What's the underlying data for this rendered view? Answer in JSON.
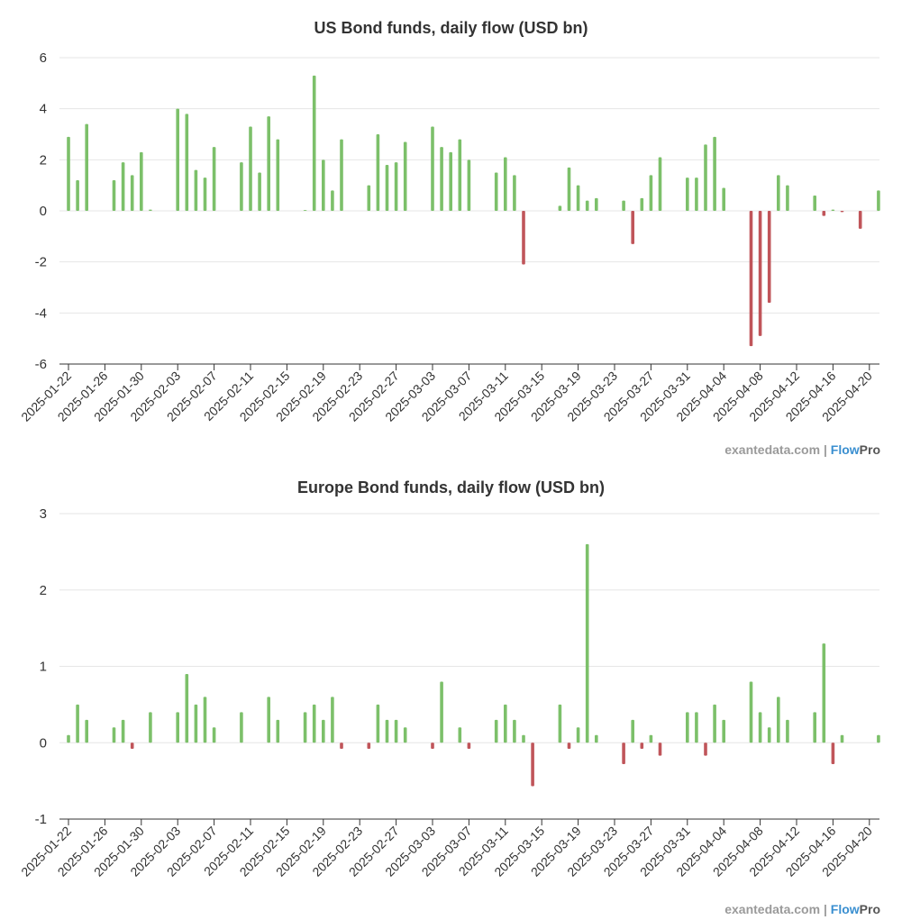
{
  "colors": {
    "positive": "#7cc06a",
    "negative": "#c0555a",
    "grid": "#e6e6e6",
    "brand_blue": "#3a8fd0"
  },
  "watermark": {
    "site": "exantedata.com",
    "separator": "|",
    "brand_a": "Flow",
    "brand_b": "Pro"
  },
  "chart_data": [
    {
      "type": "bar",
      "title": "US Bond funds, daily flow (USD bn)",
      "xlabel": "",
      "ylabel": "",
      "ylim": [
        -6,
        6
      ],
      "yticks": [
        6,
        4,
        2,
        0,
        -2,
        -4,
        -6
      ],
      "start_date": "2025-01-22",
      "num_days": 90,
      "xtick_labels": [
        "2025-01-22",
        "2025-01-26",
        "2025-01-30",
        "2025-02-03",
        "2025-02-07",
        "2025-02-11",
        "2025-02-15",
        "2025-02-19",
        "2025-02-23",
        "2025-02-27",
        "2025-03-03",
        "2025-03-07",
        "2025-03-11",
        "2025-03-15",
        "2025-03-19",
        "2025-03-23",
        "2025-03-27",
        "2025-03-31",
        "2025-04-04",
        "2025-04-08",
        "2025-04-12",
        "2025-04-16",
        "2025-04-20"
      ],
      "points": [
        {
          "date": "2025-01-22",
          "value": 2.9
        },
        {
          "date": "2025-01-23",
          "value": 1.2
        },
        {
          "date": "2025-01-24",
          "value": 3.4
        },
        {
          "date": "2025-01-27",
          "value": 1.2
        },
        {
          "date": "2025-01-28",
          "value": 1.9
        },
        {
          "date": "2025-01-29",
          "value": 1.4
        },
        {
          "date": "2025-01-30",
          "value": 2.3
        },
        {
          "date": "2025-01-31",
          "value": 0.05
        },
        {
          "date": "2025-02-03",
          "value": 4.0
        },
        {
          "date": "2025-02-04",
          "value": 3.8
        },
        {
          "date": "2025-02-05",
          "value": 1.6
        },
        {
          "date": "2025-02-06",
          "value": 1.3
        },
        {
          "date": "2025-02-07",
          "value": 2.5
        },
        {
          "date": "2025-02-10",
          "value": 1.9
        },
        {
          "date": "2025-02-11",
          "value": 3.3
        },
        {
          "date": "2025-02-12",
          "value": 1.5
        },
        {
          "date": "2025-02-13",
          "value": 3.7
        },
        {
          "date": "2025-02-14",
          "value": 2.8
        },
        {
          "date": "2025-02-17",
          "value": 0.03
        },
        {
          "date": "2025-02-18",
          "value": 5.3
        },
        {
          "date": "2025-02-19",
          "value": 2.0
        },
        {
          "date": "2025-02-20",
          "value": 0.8
        },
        {
          "date": "2025-02-21",
          "value": 2.8
        },
        {
          "date": "2025-02-24",
          "value": 1.0
        },
        {
          "date": "2025-02-25",
          "value": 3.0
        },
        {
          "date": "2025-02-26",
          "value": 1.8
        },
        {
          "date": "2025-02-27",
          "value": 1.9
        },
        {
          "date": "2025-02-28",
          "value": 2.7
        },
        {
          "date": "2025-03-03",
          "value": 3.3
        },
        {
          "date": "2025-03-04",
          "value": 2.5
        },
        {
          "date": "2025-03-05",
          "value": 2.3
        },
        {
          "date": "2025-03-06",
          "value": 2.8
        },
        {
          "date": "2025-03-07",
          "value": 2.0
        },
        {
          "date": "2025-03-10",
          "value": 1.5
        },
        {
          "date": "2025-03-11",
          "value": 2.1
        },
        {
          "date": "2025-03-12",
          "value": 1.4
        },
        {
          "date": "2025-03-13",
          "value": -2.1
        },
        {
          "date": "2025-03-17",
          "value": 0.2
        },
        {
          "date": "2025-03-18",
          "value": 1.7
        },
        {
          "date": "2025-03-19",
          "value": 1.0
        },
        {
          "date": "2025-03-20",
          "value": 0.4
        },
        {
          "date": "2025-03-21",
          "value": 0.5
        },
        {
          "date": "2025-03-24",
          "value": 0.4
        },
        {
          "date": "2025-03-25",
          "value": -1.3
        },
        {
          "date": "2025-03-26",
          "value": 0.5
        },
        {
          "date": "2025-03-27",
          "value": 1.4
        },
        {
          "date": "2025-03-28",
          "value": 2.1
        },
        {
          "date": "2025-03-31",
          "value": 1.3
        },
        {
          "date": "2025-04-01",
          "value": 1.3
        },
        {
          "date": "2025-04-02",
          "value": 2.6
        },
        {
          "date": "2025-04-03",
          "value": 2.9
        },
        {
          "date": "2025-04-04",
          "value": 0.9
        },
        {
          "date": "2025-04-07",
          "value": -5.3
        },
        {
          "date": "2025-04-08",
          "value": -4.9
        },
        {
          "date": "2025-04-09",
          "value": -3.6
        },
        {
          "date": "2025-04-10",
          "value": 1.4
        },
        {
          "date": "2025-04-11",
          "value": 1.0
        },
        {
          "date": "2025-04-14",
          "value": 0.6
        },
        {
          "date": "2025-04-15",
          "value": -0.2
        },
        {
          "date": "2025-04-16",
          "value": 0.05
        },
        {
          "date": "2025-04-17",
          "value": -0.05
        },
        {
          "date": "2025-04-19",
          "value": -0.7
        },
        {
          "date": "2025-04-21",
          "value": 0.8
        }
      ]
    },
    {
      "type": "bar",
      "title": "Europe Bond funds, daily flow (USD bn)",
      "xlabel": "",
      "ylabel": "",
      "ylim": [
        -1,
        3
      ],
      "yticks": [
        3,
        2,
        1,
        0,
        -1
      ],
      "start_date": "2025-01-22",
      "num_days": 90,
      "xtick_labels": [
        "2025-01-22",
        "2025-01-26",
        "2025-01-30",
        "2025-02-03",
        "2025-02-07",
        "2025-02-11",
        "2025-02-15",
        "2025-02-19",
        "2025-02-23",
        "2025-02-27",
        "2025-03-03",
        "2025-03-07",
        "2025-03-11",
        "2025-03-15",
        "2025-03-19",
        "2025-03-23",
        "2025-03-27",
        "2025-03-31",
        "2025-04-04",
        "2025-04-08",
        "2025-04-12",
        "2025-04-16",
        "2025-04-20"
      ],
      "points": [
        {
          "date": "2025-01-22",
          "value": 0.1
        },
        {
          "date": "2025-01-23",
          "value": 0.5
        },
        {
          "date": "2025-01-24",
          "value": 0.3
        },
        {
          "date": "2025-01-27",
          "value": 0.2
        },
        {
          "date": "2025-01-28",
          "value": 0.3
        },
        {
          "date": "2025-01-29",
          "value": -0.08
        },
        {
          "date": "2025-01-31",
          "value": 0.4
        },
        {
          "date": "2025-02-03",
          "value": 0.4
        },
        {
          "date": "2025-02-04",
          "value": 0.9
        },
        {
          "date": "2025-02-05",
          "value": 0.5
        },
        {
          "date": "2025-02-06",
          "value": 0.6
        },
        {
          "date": "2025-02-07",
          "value": 0.2
        },
        {
          "date": "2025-02-10",
          "value": 0.4
        },
        {
          "date": "2025-02-13",
          "value": 0.6
        },
        {
          "date": "2025-02-14",
          "value": 0.3
        },
        {
          "date": "2025-02-17",
          "value": 0.4
        },
        {
          "date": "2025-02-18",
          "value": 0.5
        },
        {
          "date": "2025-02-19",
          "value": 0.3
        },
        {
          "date": "2025-02-20",
          "value": 0.6
        },
        {
          "date": "2025-02-21",
          "value": -0.08
        },
        {
          "date": "2025-02-24",
          "value": -0.08
        },
        {
          "date": "2025-02-25",
          "value": 0.5
        },
        {
          "date": "2025-02-26",
          "value": 0.3
        },
        {
          "date": "2025-02-27",
          "value": 0.3
        },
        {
          "date": "2025-02-28",
          "value": 0.2
        },
        {
          "date": "2025-03-03",
          "value": -0.08
        },
        {
          "date": "2025-03-04",
          "value": 0.8
        },
        {
          "date": "2025-03-06",
          "value": 0.2
        },
        {
          "date": "2025-03-07",
          "value": -0.08
        },
        {
          "date": "2025-03-10",
          "value": 0.3
        },
        {
          "date": "2025-03-11",
          "value": 0.5
        },
        {
          "date": "2025-03-12",
          "value": 0.3
        },
        {
          "date": "2025-03-13",
          "value": 0.1
        },
        {
          "date": "2025-03-14",
          "value": -0.57
        },
        {
          "date": "2025-03-17",
          "value": 0.5
        },
        {
          "date": "2025-03-18",
          "value": -0.08
        },
        {
          "date": "2025-03-19",
          "value": 0.2
        },
        {
          "date": "2025-03-20",
          "value": 2.6
        },
        {
          "date": "2025-03-21",
          "value": 0.1
        },
        {
          "date": "2025-03-24",
          "value": -0.28
        },
        {
          "date": "2025-03-25",
          "value": 0.3
        },
        {
          "date": "2025-03-26",
          "value": -0.08
        },
        {
          "date": "2025-03-27",
          "value": 0.1
        },
        {
          "date": "2025-03-28",
          "value": -0.17
        },
        {
          "date": "2025-03-31",
          "value": 0.4
        },
        {
          "date": "2025-04-01",
          "value": 0.4
        },
        {
          "date": "2025-04-02",
          "value": -0.17
        },
        {
          "date": "2025-04-03",
          "value": 0.5
        },
        {
          "date": "2025-04-04",
          "value": 0.3
        },
        {
          "date": "2025-04-07",
          "value": 0.8
        },
        {
          "date": "2025-04-08",
          "value": 0.4
        },
        {
          "date": "2025-04-09",
          "value": 0.2
        },
        {
          "date": "2025-04-10",
          "value": 0.6
        },
        {
          "date": "2025-04-11",
          "value": 0.3
        },
        {
          "date": "2025-04-14",
          "value": 0.4
        },
        {
          "date": "2025-04-15",
          "value": 1.3
        },
        {
          "date": "2025-04-16",
          "value": -0.28
        },
        {
          "date": "2025-04-17",
          "value": 0.1
        },
        {
          "date": "2025-04-21",
          "value": 0.1
        }
      ]
    }
  ]
}
